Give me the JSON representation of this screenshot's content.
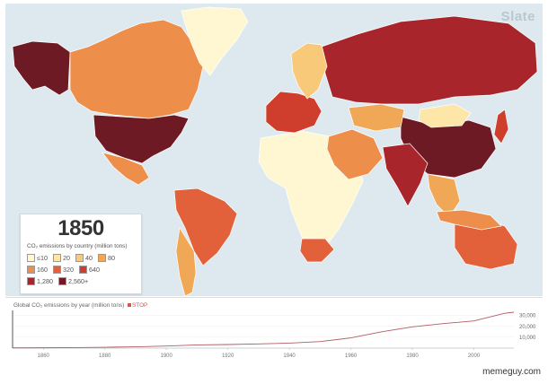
{
  "brand": "Slate",
  "year": "1850",
  "legend": {
    "title": "CO₂ emissions by country (million tons)",
    "items": [
      {
        "label": "≤10",
        "color": "#fff7d2"
      },
      {
        "label": "20",
        "color": "#fde6a8"
      },
      {
        "label": "40",
        "color": "#f9c97a"
      },
      {
        "label": "80",
        "color": "#f0a756"
      },
      {
        "label": "160",
        "color": "#ed8f4b"
      },
      {
        "label": "320",
        "color": "#e3613a"
      },
      {
        "label": "640",
        "color": "#cf3e2c"
      },
      {
        "label": "1,280",
        "color": "#a7252b"
      },
      {
        "label": "2,560+",
        "color": "#6e1a24"
      }
    ]
  },
  "map": {
    "countries": [
      {
        "name": "alaska",
        "level": 8
      },
      {
        "name": "canada",
        "level": 4
      },
      {
        "name": "usa",
        "level": 8
      },
      {
        "name": "mexico",
        "level": 4
      },
      {
        "name": "greenland",
        "level": 0
      },
      {
        "name": "russia",
        "level": 7
      },
      {
        "name": "china",
        "level": 8
      },
      {
        "name": "india",
        "level": 7
      },
      {
        "name": "brazil",
        "level": 5
      },
      {
        "name": "argentina",
        "level": 3
      },
      {
        "name": "australia",
        "level": 5
      },
      {
        "name": "africa",
        "level": 0
      },
      {
        "name": "south-africa",
        "level": 5
      },
      {
        "name": "europe-west",
        "level": 6
      },
      {
        "name": "scandinavia",
        "level": 2
      },
      {
        "name": "middle-east",
        "level": 4
      },
      {
        "name": "kazakhstan",
        "level": 3
      },
      {
        "name": "mongolia",
        "level": 1
      },
      {
        "name": "southeast-asia",
        "level": 3
      },
      {
        "name": "indonesia",
        "level": 4
      },
      {
        "name": "japan",
        "level": 6
      }
    ]
  },
  "timeline": {
    "title": "Global CO₂ emissions by year (million tons)",
    "stop_label": "STOP",
    "x_ticks": [
      "1860",
      "1880",
      "1900",
      "1920",
      "1940",
      "1960",
      "1980",
      "2000"
    ],
    "y_ticks": [
      "30,000",
      "20,000",
      "10,000"
    ]
  },
  "chart_data": {
    "type": "line",
    "title": "Global CO₂ emissions by year (million tons)",
    "xlabel": "",
    "ylabel": "",
    "xlim": [
      1850,
      2013
    ],
    "ylim": [
      0,
      33000
    ],
    "x": [
      1850,
      1860,
      1870,
      1880,
      1890,
      1900,
      1910,
      1920,
      1930,
      1940,
      1950,
      1960,
      1970,
      1980,
      1990,
      2000,
      2005,
      2010,
      2013
    ],
    "series": [
      {
        "values": [
          200,
          300,
          500,
          800,
          1200,
          1900,
          2900,
          3300,
          3900,
          4600,
          6000,
          9400,
          15000,
          19500,
          22500,
          25000,
          28500,
          32000,
          33000
        ]
      }
    ]
  },
  "watermark": "memeguy.com"
}
